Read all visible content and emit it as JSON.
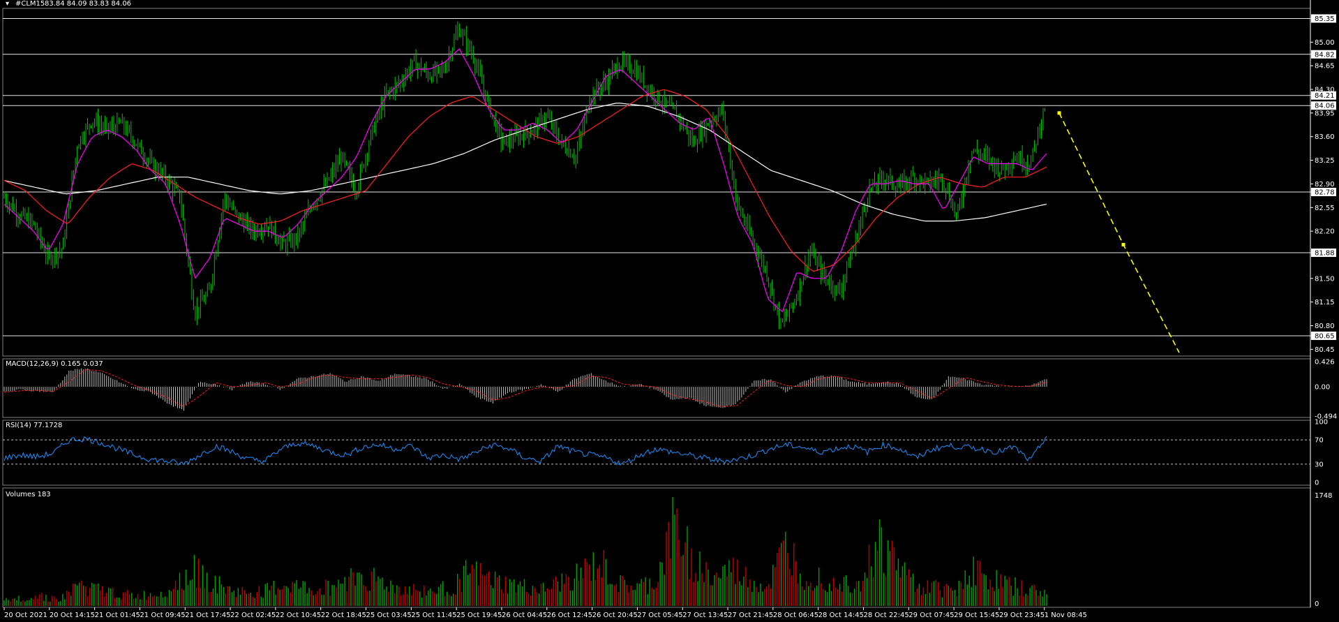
{
  "header": {
    "symbol": "#CLM15",
    "ohlc": "83.84 84.09 83.83 84.06"
  },
  "colors": {
    "background": "#000000",
    "candle": "#00c000",
    "ma_fast": "#ff00ff",
    "ma_mid": "#ff2020",
    "ma_slow": "#ffffff",
    "projection": "#ffff00",
    "macd_hist": "#c0c0c0",
    "macd_signal": "#ff2020",
    "rsi": "#1e90ff",
    "volume_up": "#00a000",
    "volume_down": "#c00000",
    "panel_border": "#808080"
  },
  "chart_data": [
    {
      "type": "candlestick",
      "title": "#CLM15",
      "ylim": [
        80.35,
        85.5
      ],
      "y_ticks": [
        "85.35",
        "85.00",
        "84.82",
        "84.65",
        "84.30",
        "84.21",
        "84.06",
        "83.95",
        "83.60",
        "83.25",
        "82.90",
        "82.78",
        "82.55",
        "82.20",
        "81.88",
        "81.50",
        "81.15",
        "80.80",
        "80.65",
        "80.45"
      ],
      "horizontal_levels": [
        85.35,
        84.82,
        84.21,
        84.06,
        82.78,
        81.88,
        80.65
      ],
      "highlighted_levels": [
        "85.35",
        "84.82",
        "84.21",
        "84.06",
        "82.78",
        "81.88",
        "80.65"
      ],
      "x_ticks": [
        "20 Oct 2021",
        "20 Oct 14:15",
        "21 Oct 01:45",
        "21 Oct 09:45",
        "21 Oct 17:45",
        "22 Oct 02:45",
        "22 Oct 10:45",
        "22 Oct 18:45",
        "25 Oct 03:45",
        "25 Oct 11:45",
        "25 Oct 19:45",
        "26 Oct 04:45",
        "26 Oct 12:45",
        "26 Oct 20:45",
        "27 Oct 05:45",
        "27 Oct 13:45",
        "27 Oct 21:45",
        "28 Oct 06:45",
        "28 Oct 14:45",
        "28 Oct 22:45",
        "29 Oct 07:45",
        "29 Oct 15:45",
        "29 Oct 23:45",
        "1 Nov 08:45"
      ],
      "price_path": [
        82.7,
        82.45,
        82.3,
        81.8,
        81.95,
        83.5,
        83.85,
        83.7,
        83.8,
        83.5,
        83.2,
        83.0,
        82.7,
        81.0,
        81.3,
        82.7,
        82.4,
        82.2,
        82.3,
        82.0,
        82.1,
        82.6,
        82.9,
        83.3,
        82.8,
        83.6,
        84.2,
        84.4,
        84.7,
        84.5,
        84.6,
        85.2,
        84.8,
        84.1,
        83.5,
        83.6,
        83.7,
        83.9,
        83.5,
        83.3,
        84.2,
        84.4,
        84.7,
        84.6,
        84.3,
        84.1,
        83.9,
        83.5,
        83.8,
        84.0,
        82.6,
        82.1,
        81.6,
        80.8,
        81.2,
        81.9,
        81.5,
        81.3,
        82.0,
        82.8,
        83.0,
        82.85,
        83.0,
        82.9,
        83.0,
        82.4,
        83.4,
        83.3,
        83.1,
        83.3,
        83.2,
        84.06
      ],
      "ma_fast_path": [
        82.6,
        82.4,
        82.2,
        81.9,
        82.3,
        83.2,
        83.6,
        83.7,
        83.6,
        83.4,
        83.1,
        82.9,
        82.3,
        81.5,
        81.8,
        82.4,
        82.3,
        82.2,
        82.2,
        82.1,
        82.3,
        82.6,
        82.8,
        83.0,
        83.3,
        83.8,
        84.2,
        84.4,
        84.6,
        84.6,
        84.7,
        84.9,
        84.5,
        84.0,
        83.7,
        83.7,
        83.8,
        83.7,
        83.5,
        83.7,
        84.1,
        84.5,
        84.6,
        84.4,
        84.2,
        84.0,
        83.8,
        83.7,
        83.9,
        83.2,
        82.4,
        82.0,
        81.2,
        81.0,
        81.6,
        81.5,
        81.5,
        81.9,
        82.5,
        82.9,
        82.9,
        82.95,
        82.9,
        82.9,
        82.5,
        82.9,
        83.3,
        83.2,
        83.2,
        83.2,
        83.1,
        83.35
      ],
      "ma_mid_path": [
        82.95,
        82.8,
        82.5,
        82.3,
        82.7,
        83.0,
        83.2,
        83.1,
        82.9,
        82.7,
        82.55,
        82.4,
        82.3,
        82.35,
        82.5,
        82.6,
        82.7,
        82.8,
        83.2,
        83.6,
        83.9,
        84.1,
        84.2,
        84.0,
        83.8,
        83.6,
        83.5,
        83.6,
        83.8,
        84.0,
        84.2,
        84.3,
        84.2,
        84.0,
        83.6,
        83.0,
        82.4,
        81.9,
        81.6,
        81.7,
        82.0,
        82.4,
        82.7,
        82.9,
        83.0,
        82.9,
        82.85,
        83.0,
        83.0,
        83.15
      ],
      "ma_slow_path": [
        82.95,
        82.85,
        82.75,
        82.8,
        82.9,
        83.0,
        83.0,
        82.9,
        82.8,
        82.75,
        82.8,
        82.9,
        83.0,
        83.1,
        83.2,
        83.35,
        83.55,
        83.7,
        83.85,
        84.0,
        84.1,
        84.05,
        83.9,
        83.7,
        83.4,
        83.1,
        82.95,
        82.8,
        82.6,
        82.45,
        82.35,
        82.35,
        82.4,
        82.5,
        82.6
      ],
      "projection": {
        "from": 83.95,
        "mid": 82.0,
        "to": 80.4
      }
    },
    {
      "type": "bar",
      "title": "MACD(12,26,9) 0.165 0.037",
      "ylim": [
        -0.494,
        0.426
      ],
      "y_ticks": [
        "0.426",
        "0.00",
        "-0.494"
      ],
      "macd_path": [
        -0.1,
        -0.05,
        -0.08,
        -0.1,
        0.3,
        0.35,
        0.25,
        0.1,
        -0.05,
        -0.1,
        -0.3,
        -0.45,
        0.1,
        0.05,
        -0.05,
        0.1,
        0.05,
        -0.05,
        0.15,
        0.2,
        0.25,
        0.1,
        0.2,
        0.1,
        0.25,
        0.2,
        0.15,
        -0.05,
        0.05,
        -0.2,
        -0.3,
        -0.1,
        -0.05,
        0.05,
        -0.1,
        0.15,
        0.25,
        0.1,
        0.0,
        0.05,
        -0.05,
        -0.25,
        -0.2,
        -0.35,
        -0.4,
        -0.3,
        0.1,
        0.15,
        -0.1,
        0.1,
        0.2,
        0.2,
        0.1,
        0.05,
        0.1,
        0.05,
        -0.2,
        -0.25,
        0.2,
        0.15,
        0.05,
        0.02,
        0.0,
        0.02,
        0.15
      ]
    },
    {
      "type": "line",
      "title": "RSI(14) 77.1728",
      "ylim": [
        0,
        100
      ],
      "y_ticks": [
        "100",
        "70",
        "30",
        "0"
      ],
      "levels": [
        70,
        30
      ],
      "rsi_path": [
        40,
        45,
        42,
        48,
        70,
        72,
        65,
        55,
        45,
        38,
        35,
        30,
        45,
        60,
        50,
        38,
        35,
        55,
        65,
        60,
        50,
        45,
        58,
        62,
        55,
        60,
        40,
        45,
        38,
        50,
        62,
        55,
        40,
        35,
        60,
        50,
        45,
        40,
        30,
        45,
        55,
        50,
        45,
        40,
        35,
        38,
        45,
        55,
        62,
        58,
        50,
        55,
        60,
        50,
        62,
        55,
        40,
        55,
        60,
        58,
        55,
        50,
        58,
        35,
        77
      ]
    },
    {
      "type": "bar",
      "title": "Volumes 183",
      "ylim": [
        0,
        1748
      ],
      "y_ticks": [
        "1748",
        "0"
      ],
      "volume_profile": [
        100,
        150,
        200,
        120,
        400,
        300,
        250,
        180,
        220,
        350,
        700,
        500,
        300,
        250,
        280,
        400,
        350,
        300,
        450,
        600,
        500,
        350,
        300,
        280,
        350,
        650,
        500,
        400,
        350,
        300,
        450,
        600,
        800,
        400,
        350,
        450,
        1500,
        900,
        500,
        700,
        500,
        350,
        1100,
        600,
        550,
        450,
        500,
        1200,
        800,
        400,
        350,
        300,
        700,
        500,
        400,
        300,
        250
      ]
    }
  ]
}
